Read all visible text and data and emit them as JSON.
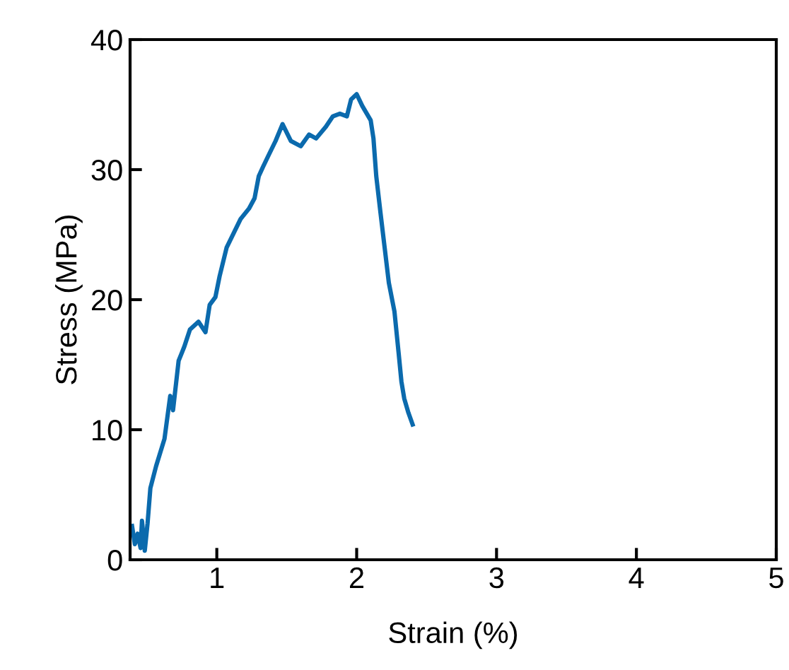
{
  "chart_data": {
    "type": "line",
    "xlabel": "Strain (%)",
    "ylabel": "Stress (MPa)",
    "xlim": [
      0.38,
      5
    ],
    "ylim": [
      0,
      40
    ],
    "xticks": [
      1,
      2,
      3,
      4,
      5
    ],
    "yticks": [
      0,
      10,
      20,
      30,
      40
    ],
    "grid": false,
    "series": [
      {
        "color": "#0b6aad",
        "x": [
          0.394,
          0.414,
          0.434,
          0.455,
          0.465,
          0.485,
          0.505,
          0.525,
          0.566,
          0.626,
          0.667,
          0.687,
          0.727,
          0.768,
          0.808,
          0.869,
          0.919,
          0.949,
          0.99,
          1.02,
          1.07,
          1.12,
          1.17,
          1.23,
          1.27,
          1.3,
          1.33,
          1.37,
          1.42,
          1.47,
          1.53,
          1.6,
          1.66,
          1.71,
          1.78,
          1.83,
          1.88,
          1.93,
          1.96,
          2.0,
          2.04,
          2.1,
          2.12,
          2.14,
          2.17,
          2.2,
          2.23,
          2.27,
          2.3,
          2.32,
          2.34,
          2.37,
          2.4
        ],
        "values": [
          2.6,
          1.2,
          2.0,
          0.9,
          3.0,
          0.7,
          2.8,
          5.5,
          7.2,
          9.3,
          12.6,
          11.5,
          15.3,
          16.4,
          17.7,
          18.3,
          17.5,
          19.6,
          20.2,
          21.8,
          24.0,
          25.1,
          26.2,
          27.0,
          27.8,
          29.5,
          30.2,
          31.1,
          32.2,
          33.5,
          32.2,
          31.8,
          32.7,
          32.4,
          33.3,
          34.1,
          34.3,
          34.1,
          35.4,
          35.8,
          34.9,
          33.8,
          32.4,
          29.5,
          26.7,
          24.0,
          21.3,
          19.1,
          15.9,
          13.7,
          12.4,
          11.3,
          10.4
        ]
      }
    ]
  }
}
